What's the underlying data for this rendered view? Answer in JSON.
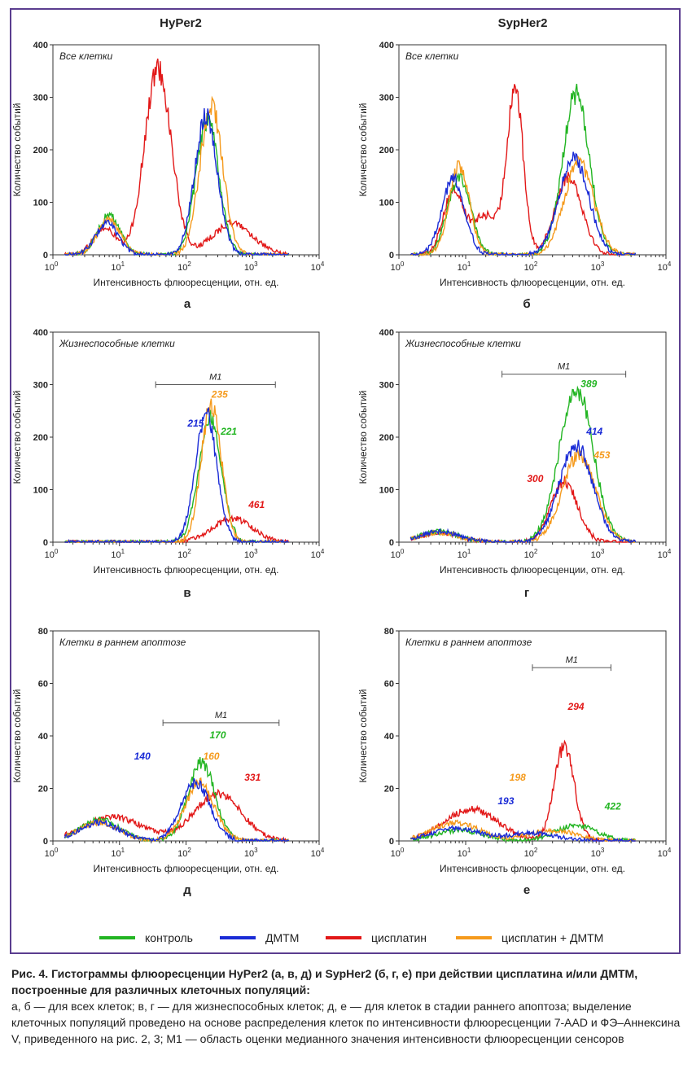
{
  "columns": [
    "HyPer2",
    "SypHer2"
  ],
  "panel_letters": [
    "а",
    "б",
    "в",
    "г",
    "д",
    "е"
  ],
  "colors": {
    "control": "#22b522",
    "dmtm": "#1a2bd6",
    "cisplatin": "#e21818",
    "cisplatin_dmtm": "#f59a1c"
  },
  "legend": [
    {
      "key": "control",
      "label": "контроль"
    },
    {
      "key": "dmtm",
      "label": "ДМТМ"
    },
    {
      "key": "cisplatin",
      "label": "цисплатин"
    },
    {
      "key": "cisplatin_dmtm",
      "label": "цисплатин + ДМТМ"
    }
  ],
  "caption": {
    "title": "Рис. 4. Гистограммы флюоресценции HyPer2 (а, в, д) и SypHer2 (б, г, е) при действии цисплатина и/или ДМТМ, построенные для различных клеточных популяций:",
    "body": "а, б — для всех клеток; в, г — для жизнеспособных клеток; д, е — для клеток в стадии раннего апоптоза; выделение клеточных популяций проведено на основе распределения клеток по интенсивности флюоресценции 7-AAD и ФЭ–Аннексина V, приведенного на рис. 2, 3; M1 — область оценки медианного значения интенсивности флюоресценции сенсоров"
  },
  "chart_data": [
    {
      "type": "line",
      "panel": "а",
      "sensor": "HyPer2",
      "title": "Все клетки",
      "xlabel": "Интенсивность флюоресценции, отн. ед.",
      "ylabel": "Количество событий",
      "xscale": "log",
      "xlim": [
        1,
        10000
      ],
      "ylim": [
        0,
        400
      ],
      "yticks": [
        "0",
        "100",
        "200",
        "300",
        "400"
      ],
      "xticks": [
        [
          "10",
          "0"
        ],
        [
          "10",
          "1"
        ],
        [
          "10",
          "2"
        ],
        [
          "10",
          "3"
        ],
        [
          "10",
          "4"
        ]
      ],
      "series": [
        {
          "key": "control",
          "peaks": [
            [
              7,
              75
            ],
            [
              210,
              255
            ]
          ],
          "w": [
            0.17,
            0.17
          ]
        },
        {
          "key": "dmtm",
          "peaks": [
            [
              6.5,
              60
            ],
            [
              200,
              265
            ]
          ],
          "w": [
            0.17,
            0.17
          ]
        },
        {
          "key": "cisplatin",
          "peaks": [
            [
              6,
              50
            ],
            [
              38,
              355
            ],
            [
              500,
              60
            ]
          ],
          "w": [
            0.17,
            0.2,
            0.3
          ]
        },
        {
          "key": "cisplatin_dmtm",
          "peaks": [
            [
              7,
              68
            ],
            [
              240,
              285
            ]
          ],
          "w": [
            0.17,
            0.17
          ]
        }
      ]
    },
    {
      "type": "line",
      "panel": "б",
      "sensor": "SypHer2",
      "title": "Все клетки",
      "xlabel": "Интенсивность флюоресценции, отн. ед.",
      "ylabel": "Количество событий",
      "xscale": "log",
      "xlim": [
        1,
        10000
      ],
      "ylim": [
        0,
        400
      ],
      "yticks": [
        "0",
        "100",
        "200",
        "300",
        "400"
      ],
      "xticks": [
        [
          "10",
          "0"
        ],
        [
          "10",
          "1"
        ],
        [
          "10",
          "2"
        ],
        [
          "10",
          "3"
        ],
        [
          "10",
          "4"
        ]
      ],
      "series": [
        {
          "key": "control",
          "peaks": [
            [
              8,
              150
            ],
            [
              450,
              305
            ]
          ],
          "w": [
            0.17,
            0.2
          ]
        },
        {
          "key": "dmtm",
          "peaks": [
            [
              6.5,
              145
            ],
            [
              420,
              185
            ]
          ],
          "w": [
            0.17,
            0.22
          ]
        },
        {
          "key": "cisplatin",
          "peaks": [
            [
              6.5,
              120
            ],
            [
              20,
              75
            ],
            [
              55,
              315
            ],
            [
              350,
              150
            ]
          ],
          "w": [
            0.15,
            0.2,
            0.12,
            0.2
          ]
        },
        {
          "key": "cisplatin_dmtm",
          "peaks": [
            [
              8,
              170
            ],
            [
              500,
              175
            ]
          ],
          "w": [
            0.15,
            0.22
          ]
        }
      ]
    },
    {
      "type": "line",
      "panel": "в",
      "sensor": "HyPer2",
      "title": "Жизнеспособные клетки",
      "xlabel": "Интенсивность флюоресценции, отн. ед.",
      "ylabel": "Количество событий",
      "xscale": "log",
      "xlim": [
        1,
        10000
      ],
      "ylim": [
        0,
        400
      ],
      "yticks": [
        "0",
        "100",
        "200",
        "300",
        "400"
      ],
      "xticks": [
        [
          "10",
          "0"
        ],
        [
          "10",
          "1"
        ],
        [
          "10",
          "2"
        ],
        [
          "10",
          "3"
        ],
        [
          "10",
          "4"
        ]
      ],
      "m1": {
        "label": "M1",
        "from": 35,
        "to": 2200,
        "y": 300
      },
      "medians": [
        {
          "key": "dmtm",
          "text": "215",
          "x": 140,
          "y": 220
        },
        {
          "key": "cisplatin_dmtm",
          "text": "235",
          "x": 320,
          "y": 275
        },
        {
          "key": "control",
          "text": "221",
          "x": 440,
          "y": 205
        },
        {
          "key": "cisplatin",
          "text": "461",
          "x": 1150,
          "y": 65
        }
      ],
      "series": [
        {
          "key": "control",
          "peaks": [
            [
              230,
              240
            ]
          ],
          "w": [
            0.17
          ]
        },
        {
          "key": "dmtm",
          "peaks": [
            [
              200,
              245
            ]
          ],
          "w": [
            0.16
          ]
        },
        {
          "key": "cisplatin",
          "peaks": [
            [
              500,
              45
            ]
          ],
          "w": [
            0.3
          ]
        },
        {
          "key": "cisplatin_dmtm",
          "peaks": [
            [
              240,
              265
            ]
          ],
          "w": [
            0.15
          ]
        }
      ]
    },
    {
      "type": "line",
      "panel": "г",
      "sensor": "SypHer2",
      "title": "Жизнеспособные клетки",
      "xlabel": "Интенсивность флюоресценции, отн. ед.",
      "ylabel": "Количество событий",
      "xscale": "log",
      "xlim": [
        1,
        10000
      ],
      "ylim": [
        0,
        400
      ],
      "yticks": [
        "0",
        "100",
        "200",
        "300",
        "400"
      ],
      "xticks": [
        [
          "10",
          "0"
        ],
        [
          "10",
          "1"
        ],
        [
          "10",
          "2"
        ],
        [
          "10",
          "3"
        ],
        [
          "10",
          "4"
        ]
      ],
      "m1": {
        "label": "M1",
        "from": 35,
        "to": 2500,
        "y": 320
      },
      "medians": [
        {
          "key": "control",
          "text": "389",
          "x": 700,
          "y": 295
        },
        {
          "key": "dmtm",
          "text": "414",
          "x": 850,
          "y": 205
        },
        {
          "key": "cisplatin_dmtm",
          "text": "453",
          "x": 1100,
          "y": 160
        },
        {
          "key": "cisplatin",
          "text": "300",
          "x": 110,
          "y": 115
        }
      ],
      "series": [
        {
          "key": "control",
          "peaks": [
            [
              4,
              20
            ],
            [
              450,
              295
            ]
          ],
          "w": [
            0.3,
            0.25
          ]
        },
        {
          "key": "dmtm",
          "peaks": [
            [
              4,
              20
            ],
            [
              450,
              185
            ]
          ],
          "w": [
            0.3,
            0.25
          ]
        },
        {
          "key": "cisplatin",
          "peaks": [
            [
              4,
              18
            ],
            [
              300,
              115
            ]
          ],
          "w": [
            0.3,
            0.2
          ]
        },
        {
          "key": "cisplatin_dmtm",
          "peaks": [
            [
              4,
              18
            ],
            [
              500,
              165
            ]
          ],
          "w": [
            0.3,
            0.25
          ]
        }
      ]
    },
    {
      "type": "line",
      "panel": "д",
      "sensor": "HyPer2",
      "title": "Клетки в раннем апоптозе",
      "xlabel": "Интенсивность флюоресценции, отн. ед.",
      "ylabel": "Количество событий",
      "xscale": "log",
      "xlim": [
        1,
        10000
      ],
      "ylim": [
        0,
        80
      ],
      "yticks": [
        "0",
        "20",
        "40",
        "60",
        "80"
      ],
      "xticks": [
        [
          "10",
          "0"
        ],
        [
          "10",
          "1"
        ],
        [
          "10",
          "2"
        ],
        [
          "10",
          "3"
        ],
        [
          "10",
          "4"
        ]
      ],
      "m1": {
        "label": "M1",
        "from": 45,
        "to": 2500,
        "y": 45
      },
      "medians": [
        {
          "key": "dmtm",
          "text": "140",
          "x": 22,
          "y": 31
        },
        {
          "key": "control",
          "text": "170",
          "x": 300,
          "y": 39
        },
        {
          "key": "cisplatin_dmtm",
          "text": "160",
          "x": 240,
          "y": 31
        },
        {
          "key": "cisplatin",
          "text": "331",
          "x": 1000,
          "y": 23
        }
      ],
      "series": [
        {
          "key": "control",
          "peaks": [
            [
              5,
              8
            ],
            [
              170,
              30
            ]
          ],
          "w": [
            0.3,
            0.2
          ]
        },
        {
          "key": "dmtm",
          "peaks": [
            [
              5,
              7
            ],
            [
              140,
              22
            ]
          ],
          "w": [
            0.3,
            0.22
          ]
        },
        {
          "key": "cisplatin",
          "peaks": [
            [
              8,
              9
            ],
            [
              300,
              18
            ]
          ],
          "w": [
            0.45,
            0.35
          ]
        },
        {
          "key": "cisplatin_dmtm",
          "peaks": [
            [
              5,
              7
            ],
            [
              160,
              22
            ]
          ],
          "w": [
            0.3,
            0.22
          ]
        }
      ]
    },
    {
      "type": "line",
      "panel": "е",
      "sensor": "SypHer2",
      "title": "Клетки в раннем апоптозе",
      "xlabel": "Интенсивность флюоресценции, отн. ед.",
      "ylabel": "Количество событий",
      "xscale": "log",
      "xlim": [
        1,
        10000
      ],
      "ylim": [
        0,
        80
      ],
      "yticks": [
        "0",
        "20",
        "40",
        "60",
        "80"
      ],
      "xticks": [
        [
          "10",
          "0"
        ],
        [
          "10",
          "1"
        ],
        [
          "10",
          "2"
        ],
        [
          "10",
          "3"
        ],
        [
          "10",
          "4"
        ]
      ],
      "m1": {
        "label": "M1",
        "from": 100,
        "to": 1500,
        "y": 66
      },
      "medians": [
        {
          "key": "cisplatin",
          "text": "294",
          "x": 450,
          "y": 50
        },
        {
          "key": "cisplatin_dmtm",
          "text": "198",
          "x": 60,
          "y": 23
        },
        {
          "key": "dmtm",
          "text": "193",
          "x": 40,
          "y": 14
        },
        {
          "key": "control",
          "text": "422",
          "x": 1600,
          "y": 12
        }
      ],
      "series": [
        {
          "key": "control",
          "peaks": [
            [
              8,
              4
            ],
            [
              450,
              6
            ]
          ],
          "w": [
            0.35,
            0.3
          ]
        },
        {
          "key": "dmtm",
          "peaks": [
            [
              7,
              5
            ],
            [
              100,
              3
            ]
          ],
          "w": [
            0.35,
            0.35
          ]
        },
        {
          "key": "cisplatin",
          "peaks": [
            [
              12,
              12
            ],
            [
              300,
              36
            ]
          ],
          "w": [
            0.4,
            0.15
          ]
        },
        {
          "key": "cisplatin_dmtm",
          "peaks": [
            [
              7,
              7
            ],
            [
              200,
              4
            ]
          ],
          "w": [
            0.35,
            0.35
          ]
        }
      ]
    }
  ]
}
